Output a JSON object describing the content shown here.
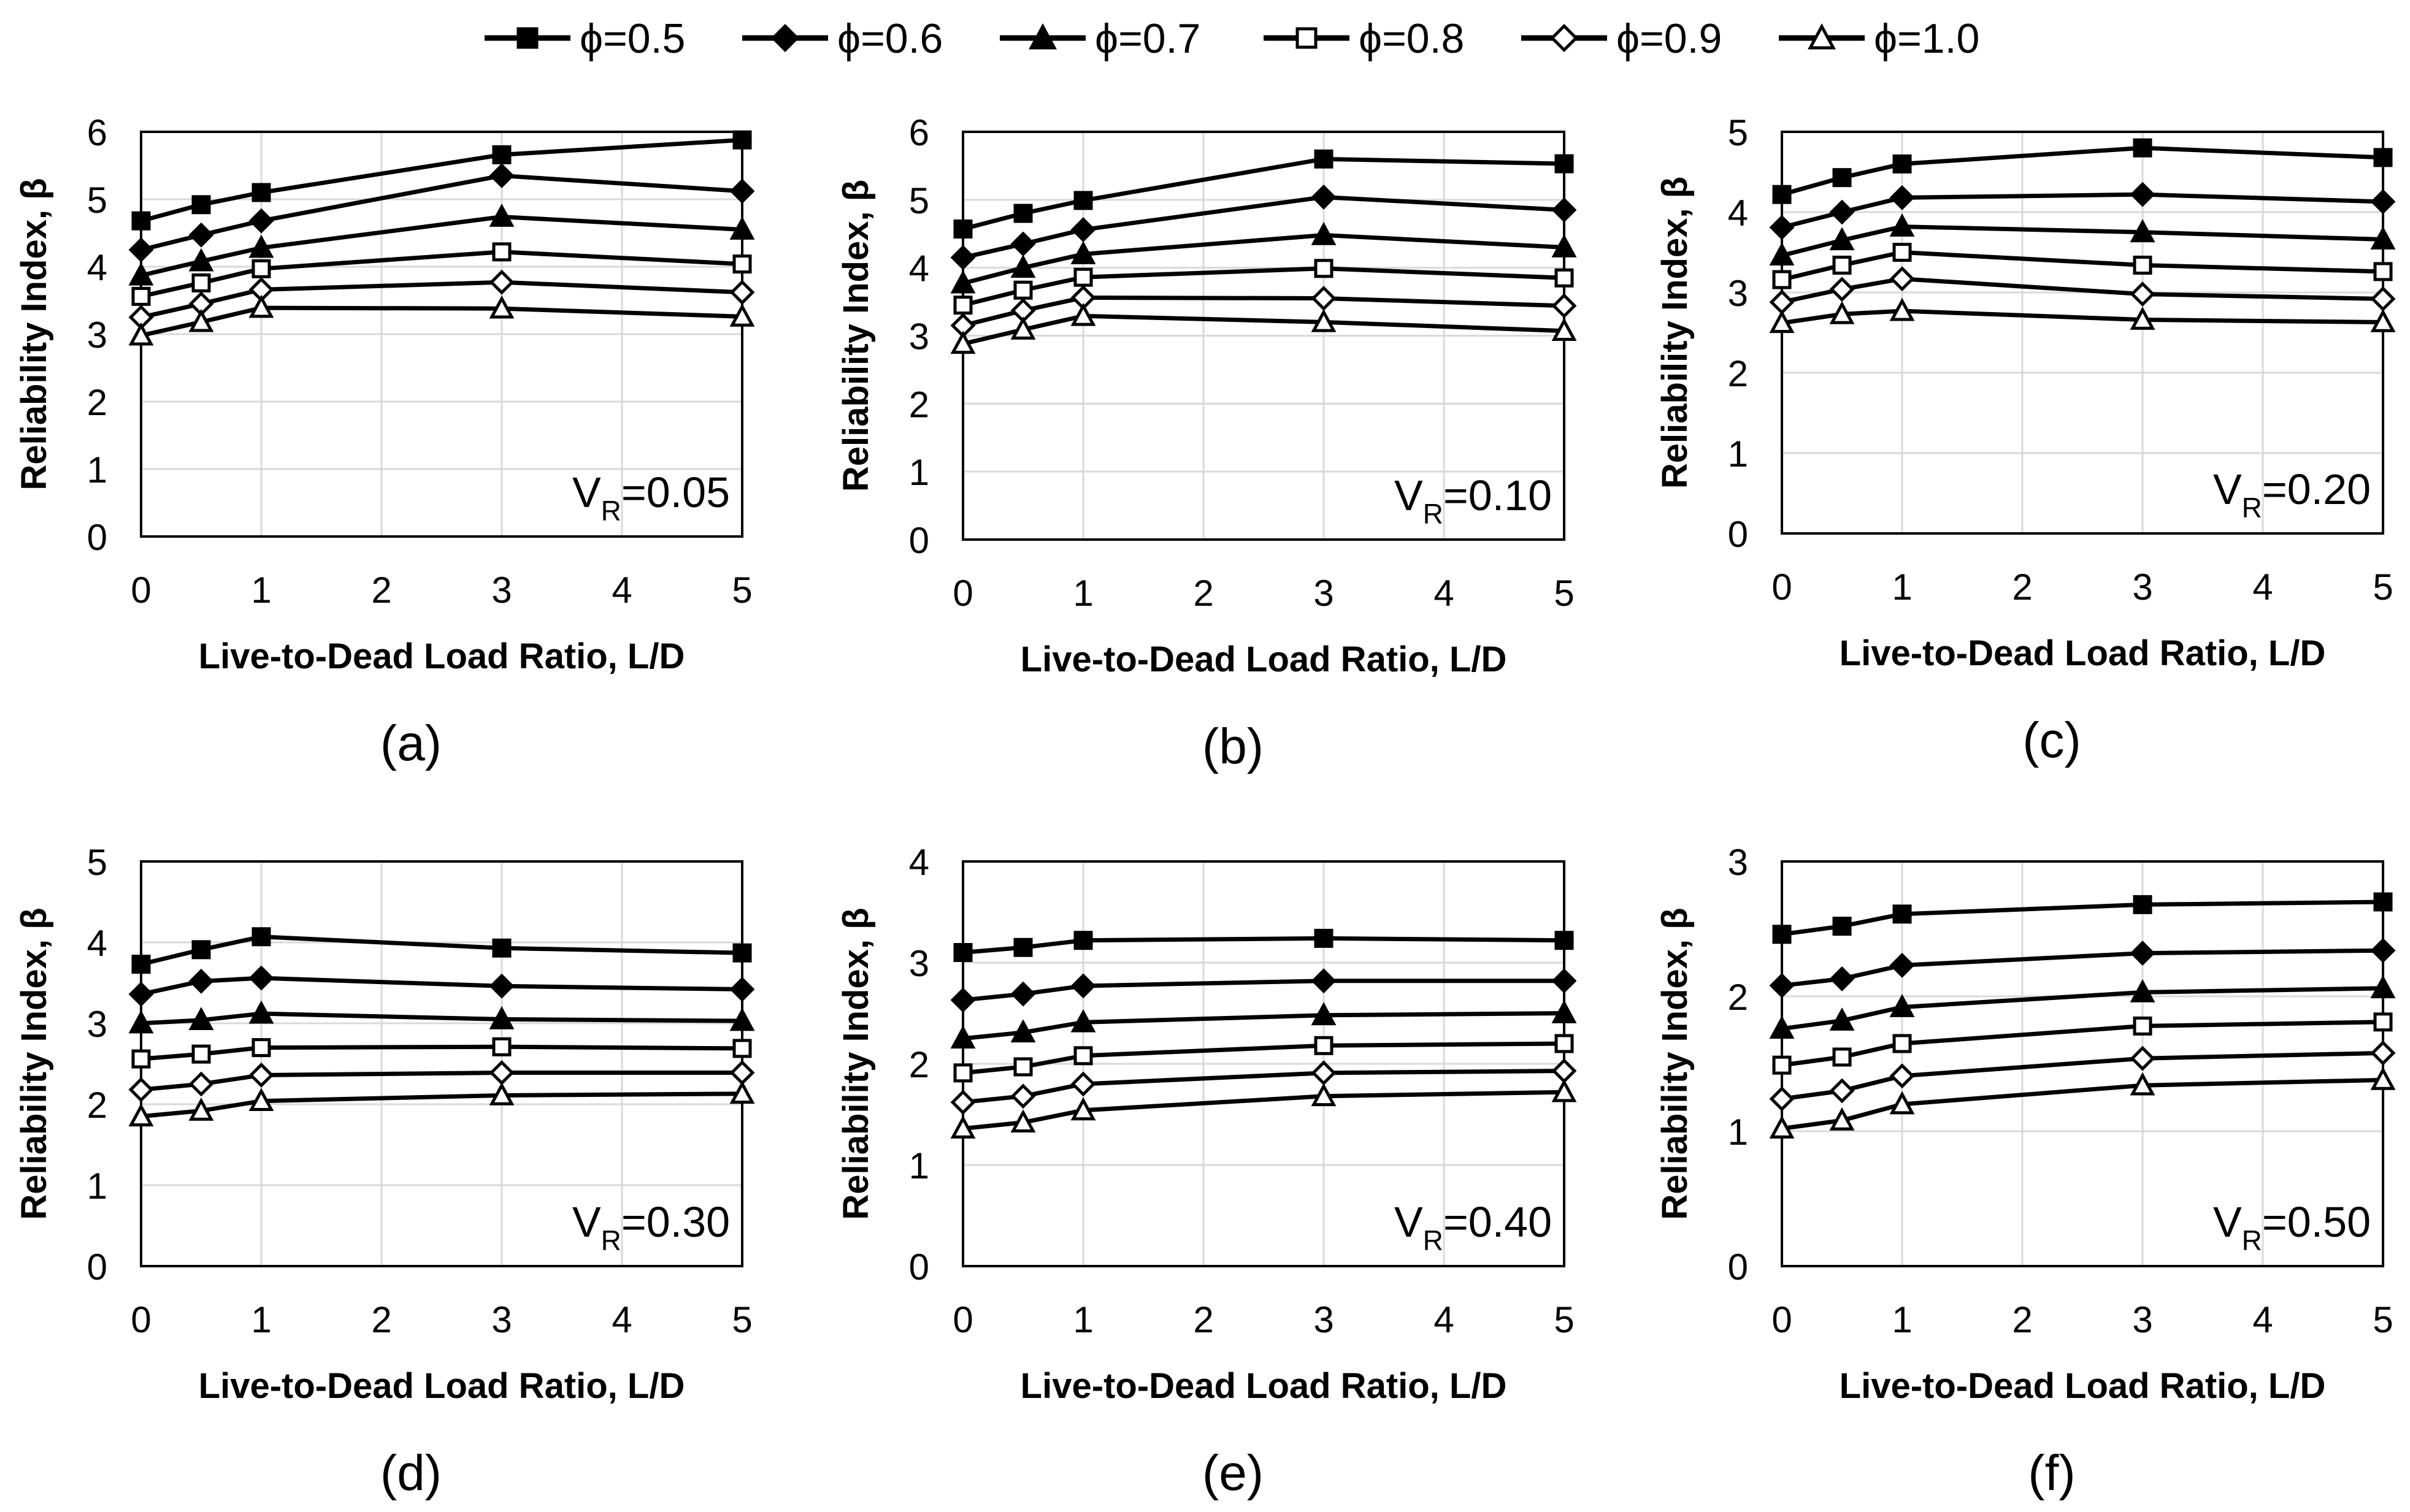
{
  "legend": {
    "entries": [
      {
        "label": "ϕ=0.5",
        "marker": "filled-square-marker"
      },
      {
        "label": "ϕ=0.6",
        "marker": "filled-diamond-marker"
      },
      {
        "label": "ϕ=0.7",
        "marker": "filled-triangle-marker"
      },
      {
        "label": "ϕ=0.8",
        "marker": "open-square-marker"
      },
      {
        "label": "ϕ=0.9",
        "marker": "open-diamond-marker"
      },
      {
        "label": "ϕ=1.0",
        "marker": "open-triangle-marker"
      }
    ]
  },
  "chart_data": [
    {
      "type": "line",
      "panel_label": "(a)",
      "annotation": {
        "base": "V",
        "sub": "R",
        "rest": "=0.05"
      },
      "xlabel": "Live-to-Dead Load Ratio, L/D",
      "ylabel": "Reliability Index, β",
      "xlim": [
        0,
        5
      ],
      "ylim": [
        0,
        6
      ],
      "xticks": [
        0,
        1,
        2,
        3,
        4,
        5
      ],
      "yticks": [
        0,
        1,
        2,
        3,
        4,
        5,
        6
      ],
      "grid": true,
      "x": [
        0,
        0.5,
        1,
        3,
        5
      ],
      "series": [
        {
          "name": "ϕ=0.5",
          "values": [
            4.68,
            4.92,
            5.1,
            5.66,
            5.88
          ]
        },
        {
          "name": "ϕ=0.6",
          "values": [
            4.25,
            4.47,
            4.68,
            5.35,
            5.12
          ]
        },
        {
          "name": "ϕ=0.7",
          "values": [
            3.87,
            4.08,
            4.28,
            4.74,
            4.55
          ]
        },
        {
          "name": "ϕ=0.8",
          "values": [
            3.56,
            3.76,
            3.97,
            4.22,
            4.04
          ]
        },
        {
          "name": "ϕ=0.9",
          "values": [
            3.25,
            3.45,
            3.66,
            3.77,
            3.62
          ]
        },
        {
          "name": "ϕ=1.0",
          "values": [
            2.98,
            3.18,
            3.39,
            3.38,
            3.26
          ]
        }
      ]
    },
    {
      "type": "line",
      "panel_label": "(b)",
      "annotation": {
        "base": "V",
        "sub": "R",
        "rest": "=0.10"
      },
      "xlabel": "Live-to-Dead Load Ratio, L/D",
      "ylabel": "Reliability Index, β",
      "xlim": [
        0,
        5
      ],
      "ylim": [
        0,
        6
      ],
      "xticks": [
        0,
        1,
        2,
        3,
        4,
        5
      ],
      "yticks": [
        0,
        1,
        2,
        3,
        4,
        5,
        6
      ],
      "grid": true,
      "x": [
        0,
        0.5,
        1,
        3,
        5
      ],
      "series": [
        {
          "name": "ϕ=0.5",
          "values": [
            4.57,
            4.8,
            4.99,
            5.6,
            5.53
          ]
        },
        {
          "name": "ϕ=0.6",
          "values": [
            4.15,
            4.35,
            4.56,
            5.04,
            4.85
          ]
        },
        {
          "name": "ϕ=0.7",
          "values": [
            3.77,
            4.0,
            4.2,
            4.48,
            4.3
          ]
        },
        {
          "name": "ϕ=0.8",
          "values": [
            3.45,
            3.67,
            3.86,
            3.99,
            3.85
          ]
        },
        {
          "name": "ϕ=0.9",
          "values": [
            3.15,
            3.37,
            3.56,
            3.55,
            3.44
          ]
        },
        {
          "name": "ϕ=1.0",
          "values": [
            2.88,
            3.09,
            3.29,
            3.2,
            3.07
          ]
        }
      ]
    },
    {
      "type": "line",
      "panel_label": "(c)",
      "annotation": {
        "base": "V",
        "sub": "R",
        "rest": "=0.20"
      },
      "xlabel": "Live-to-Dead Load Ratio, L/D",
      "ylabel": "Reliability Index, β",
      "xlim": [
        0,
        5
      ],
      "ylim": [
        0,
        5
      ],
      "xticks": [
        0,
        1,
        2,
        3,
        4,
        5
      ],
      "yticks": [
        0,
        1,
        2,
        3,
        4,
        5
      ],
      "grid": true,
      "x": [
        0,
        0.5,
        1,
        3,
        5
      ],
      "series": [
        {
          "name": "ϕ=0.5",
          "values": [
            4.22,
            4.43,
            4.6,
            4.8,
            4.68
          ]
        },
        {
          "name": "ϕ=0.6",
          "values": [
            3.81,
            4.0,
            4.18,
            4.22,
            4.13
          ]
        },
        {
          "name": "ϕ=0.7",
          "values": [
            3.46,
            3.65,
            3.82,
            3.75,
            3.66
          ]
        },
        {
          "name": "ϕ=0.8",
          "values": [
            3.16,
            3.34,
            3.5,
            3.34,
            3.26
          ]
        },
        {
          "name": "ϕ=0.9",
          "values": [
            2.88,
            3.04,
            3.17,
            2.98,
            2.92
          ]
        },
        {
          "name": "ϕ=1.0",
          "values": [
            2.62,
            2.73,
            2.77,
            2.66,
            2.63
          ]
        }
      ]
    },
    {
      "type": "line",
      "panel_label": "(d)",
      "annotation": {
        "base": "V",
        "sub": "R",
        "rest": "=0.30"
      },
      "xlabel": "Live-to-Dead Load Ratio, L/D",
      "ylabel": "Reliability Index, β",
      "xlim": [
        0,
        5
      ],
      "ylim": [
        0,
        5
      ],
      "xticks": [
        0,
        1,
        2,
        3,
        4,
        5
      ],
      "yticks": [
        0,
        1,
        2,
        3,
        4,
        5
      ],
      "grid": true,
      "x": [
        0,
        0.5,
        1,
        3,
        5
      ],
      "series": [
        {
          "name": "ϕ=0.5",
          "values": [
            3.73,
            3.91,
            4.07,
            3.93,
            3.87
          ]
        },
        {
          "name": "ϕ=0.6",
          "values": [
            3.36,
            3.52,
            3.56,
            3.46,
            3.42
          ]
        },
        {
          "name": "ϕ=0.7",
          "values": [
            3.0,
            3.04,
            3.12,
            3.05,
            3.03
          ]
        },
        {
          "name": "ϕ=0.8",
          "values": [
            2.56,
            2.62,
            2.7,
            2.71,
            2.69
          ]
        },
        {
          "name": "ϕ=0.9",
          "values": [
            2.18,
            2.25,
            2.36,
            2.39,
            2.39
          ]
        },
        {
          "name": "ϕ=1.0",
          "values": [
            1.85,
            1.92,
            2.04,
            2.11,
            2.13
          ]
        }
      ]
    },
    {
      "type": "line",
      "panel_label": "(e)",
      "annotation": {
        "base": "V",
        "sub": "R",
        "rest": "=0.40"
      },
      "xlabel": "Live-to-Dead Load Ratio, L/D",
      "ylabel": "Reliability Index, β",
      "xlim": [
        0,
        5
      ],
      "ylim": [
        0,
        4
      ],
      "xticks": [
        0,
        1,
        2,
        3,
        4,
        5
      ],
      "yticks": [
        0,
        1,
        2,
        3,
        4
      ],
      "grid": true,
      "x": [
        0,
        0.5,
        1,
        3,
        5
      ],
      "series": [
        {
          "name": "ϕ=0.5",
          "values": [
            3.1,
            3.15,
            3.22,
            3.24,
            3.22
          ]
        },
        {
          "name": "ϕ=0.6",
          "values": [
            2.63,
            2.69,
            2.77,
            2.82,
            2.82
          ]
        },
        {
          "name": "ϕ=0.7",
          "values": [
            2.25,
            2.31,
            2.41,
            2.48,
            2.5
          ]
        },
        {
          "name": "ϕ=0.8",
          "values": [
            1.91,
            1.97,
            2.08,
            2.18,
            2.2
          ]
        },
        {
          "name": "ϕ=0.9",
          "values": [
            1.62,
            1.68,
            1.8,
            1.91,
            1.93
          ]
        },
        {
          "name": "ϕ=1.0",
          "values": [
            1.36,
            1.42,
            1.54,
            1.68,
            1.72
          ]
        }
      ]
    },
    {
      "type": "line",
      "panel_label": "(f)",
      "annotation": {
        "base": "V",
        "sub": "R",
        "rest": "=0.50"
      },
      "xlabel": "Live-to-Dead Load Ratio, L/D",
      "ylabel": "Reliability Index, β",
      "xlim": [
        0,
        5
      ],
      "ylim": [
        0,
        3
      ],
      "xticks": [
        0,
        1,
        2,
        3,
        4,
        5
      ],
      "yticks": [
        0,
        1,
        2,
        3
      ],
      "grid": true,
      "x": [
        0,
        0.5,
        1,
        3,
        5
      ],
      "series": [
        {
          "name": "ϕ=0.5",
          "values": [
            2.46,
            2.52,
            2.61,
            2.68,
            2.7
          ]
        },
        {
          "name": "ϕ=0.6",
          "values": [
            2.08,
            2.13,
            2.23,
            2.32,
            2.34
          ]
        },
        {
          "name": "ϕ=0.7",
          "values": [
            1.76,
            1.82,
            1.92,
            2.03,
            2.06
          ]
        },
        {
          "name": "ϕ=0.8",
          "values": [
            1.49,
            1.55,
            1.65,
            1.78,
            1.81
          ]
        },
        {
          "name": "ϕ=0.9",
          "values": [
            1.24,
            1.3,
            1.41,
            1.54,
            1.58
          ]
        },
        {
          "name": "ϕ=1.0",
          "values": [
            1.02,
            1.08,
            1.2,
            1.34,
            1.38
          ]
        }
      ]
    }
  ]
}
